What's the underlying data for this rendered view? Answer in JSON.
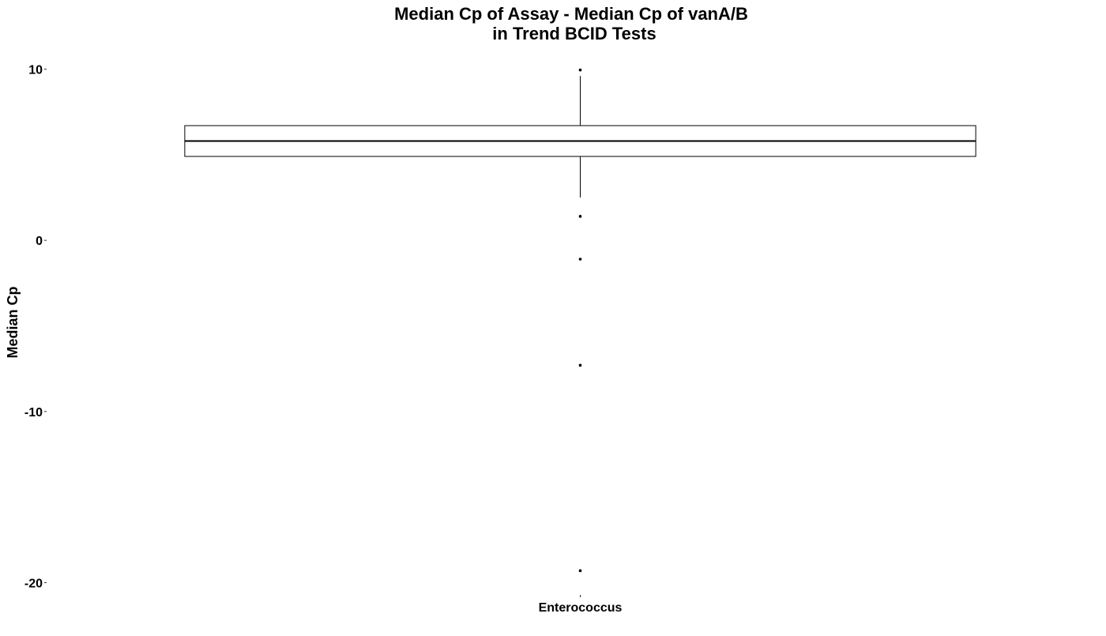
{
  "chart_data": {
    "type": "box",
    "title": [
      "Median Cp of Assay - Median Cp of vanA/B",
      "in Trend BCID Tests"
    ],
    "xlabel": "",
    "ylabel": "Median Cp",
    "ylim": [
      -20.9,
      10.9
    ],
    "yticks": [
      10,
      0,
      -10,
      -20
    ],
    "ytick_labels": [
      "10",
      "0",
      "-10",
      "-20"
    ],
    "categories": [
      "Enterococcus"
    ],
    "grid": false,
    "boxes": [
      {
        "category": "Enterococcus",
        "q1": 4.9,
        "median": 5.8,
        "q3": 6.7,
        "whisker_low": 2.5,
        "whisker_high": 9.6,
        "outliers": [
          9.95,
          1.4,
          -1.1,
          -7.3,
          -19.3
        ]
      }
    ],
    "colors": {
      "box_fill": "#ffffff",
      "stroke": "#000000"
    }
  }
}
